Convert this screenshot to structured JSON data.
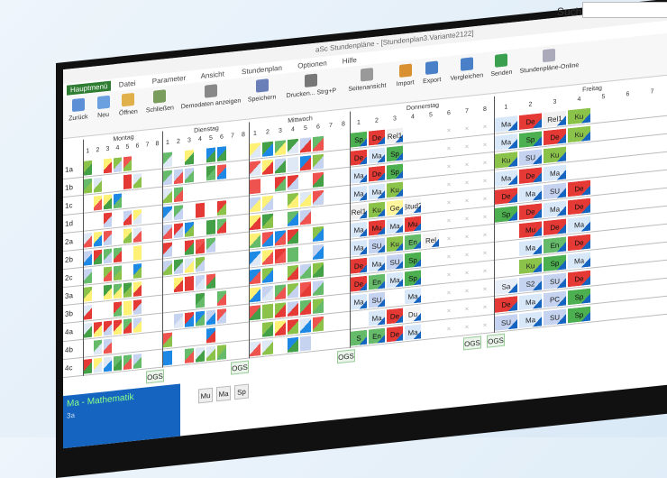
{
  "window": {
    "title": "aSc Stundenpläne - [Stundenplan3.Variante2122]",
    "search_label": "Suche:"
  },
  "menu": [
    "Hauptmenü",
    "Datei",
    "Parameter",
    "Ansicht",
    "Stundenplan",
    "Optionen",
    "Hilfe"
  ],
  "toolbar": [
    "Zurück",
    "Neu",
    "Öffnen",
    "Schließen",
    "Demodaten anzeigen",
    "Speichern",
    "Drucken... Strg+P",
    "Seitenansicht",
    "Import",
    "Export",
    "Vergleichen",
    "Senden",
    "Stundenpläne-Online"
  ],
  "days": [
    "Montag",
    "Dienstag",
    "Mittwoch",
    "Donnerstag",
    "Freitag"
  ],
  "periods": [
    "1",
    "2",
    "3",
    "4",
    "5",
    "6",
    "7",
    "8"
  ],
  "subject_colors": {
    "Ma": "#d8e8f8",
    "De": "#e53935",
    "Sp": "#4caf50",
    "Ku": "#8bc34a",
    "Rel1": "#f0f0f0",
    "SU": "#c5d3f0",
    "Mu": "#e53935",
    "En": "#66bb6a",
    "Ge": "#fff59d",
    "Stud2": "#f5f5f5",
    "Rel": "#f5f5f5",
    "Sa": "#e8eef8",
    "S2": "#c5d3f0",
    "PC": "#c5d3f0",
    "Du": "#f5f5f5",
    "S": "#66bb6a"
  },
  "rows": [
    {
      "label": "1a",
      "thu": [
        "Sp",
        "De",
        "Rel1",
        null,
        null,
        null,
        null,
        null
      ],
      "fri": [
        "Ma",
        "De",
        "Rel1",
        "Ku"
      ]
    },
    {
      "label": "1b",
      "thu": [
        "De",
        "Ma",
        "Sp",
        null,
        null,
        null,
        null,
        null
      ],
      "fri": [
        "Ma",
        "Sp",
        "De",
        "Ku"
      ]
    },
    {
      "label": "1c",
      "thu": [
        "Ma",
        "De",
        "Sp",
        null,
        null,
        null,
        null,
        null
      ],
      "fri": [
        "Ku",
        "SU",
        "Ku",
        null
      ]
    },
    {
      "label": "1d",
      "thu": [
        "Ma",
        "Ma",
        "Ku",
        null,
        null,
        null,
        null,
        null
      ],
      "fri": [
        "Ma",
        "De",
        "Ma",
        null
      ]
    },
    {
      "label": "2a",
      "thu": [
        "Rel1",
        "Ku",
        "Ge",
        "Stud2",
        null,
        null,
        null,
        null
      ],
      "fri": [
        "De",
        "Ma",
        "SU",
        "De"
      ]
    },
    {
      "label": "2b",
      "thu": [
        "Ma",
        "Mu",
        "Ma",
        "Mu",
        null,
        null,
        null,
        null
      ],
      "fri": [
        "Sp",
        "De",
        "Ma",
        "De"
      ]
    },
    {
      "label": "2c",
      "thu": [
        "Ma",
        "SU",
        "Ku",
        "En",
        "Rel",
        null,
        null,
        null
      ],
      "fri": [
        null,
        "Mu",
        "De",
        "Ma"
      ]
    },
    {
      "label": "3a",
      "thu": [
        "De",
        "Ma",
        "SU",
        "Sp",
        null,
        null,
        null,
        null
      ],
      "fri": [
        null,
        "Ma",
        "En",
        "De"
      ]
    },
    {
      "label": "3b",
      "thu": [
        "De",
        "En",
        "Ma",
        "Sp",
        null,
        null,
        null,
        null
      ],
      "fri": [
        null,
        "Ku",
        "Sp",
        "Ma"
      ]
    },
    {
      "label": "4a",
      "thu": [
        "Ma",
        "SU",
        null,
        "Ma",
        null,
        null,
        null,
        null
      ],
      "fri": [
        "Sa",
        "S2",
        "SU",
        "De"
      ]
    },
    {
      "label": "4b",
      "thu": [
        null,
        "Ma",
        "De",
        "Du",
        null,
        null,
        null,
        null
      ],
      "fri": [
        "De",
        "Ma",
        "PC",
        "Sp"
      ]
    },
    {
      "label": "4c",
      "thu": [
        "S",
        "En",
        "De",
        "Ma",
        null,
        null,
        null,
        null
      ],
      "fri": [
        "SU",
        "Ma",
        "SU",
        "Sp"
      ]
    }
  ],
  "ogs": [
    "OGS",
    "OGS",
    "OGS",
    "OGS",
    "OGS"
  ],
  "footer": {
    "subject": "Ma - Mathematik",
    "class": "3a",
    "buttons": [
      "Mu",
      "Ma",
      "Sp"
    ]
  }
}
